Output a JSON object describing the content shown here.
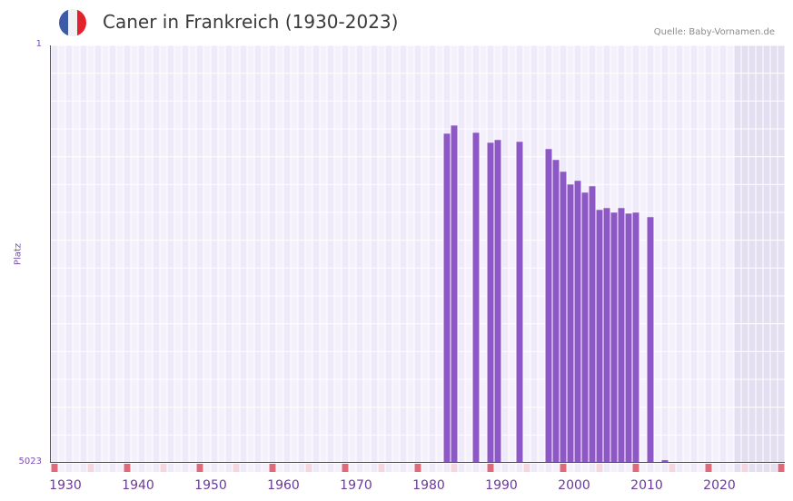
{
  "header": {
    "title": "Caner in Frankreich (1930-2023)",
    "source": "Quelle: Baby-Vornamen.de",
    "flag_colors": [
      "#3c5aa6",
      "#f2f2f5",
      "#e2232b"
    ]
  },
  "axes": {
    "y_label": "Platz",
    "y_top_tick": "1",
    "y_bottom_tick": "5023",
    "x_ticks": [
      "1930",
      "1940",
      "1950",
      "1960",
      "1970",
      "1980",
      "1990",
      "2000",
      "2010",
      "2020"
    ]
  },
  "colors": {
    "bar": "#8e57c6",
    "axis": "#6a3a9a",
    "grid_a": "#efeafa",
    "grid_b": "#f4f1fc",
    "future_shade": "#e3def0",
    "decade_marker": "#e06a7a",
    "half_decade_marker": "#f5d6e0"
  },
  "chart_data": {
    "type": "bar",
    "title": "Caner in Frankreich (1930-2023)",
    "xlabel": "",
    "ylabel": "Platz",
    "y_inverted": true,
    "ylim": [
      5023,
      1
    ],
    "x_range": [
      1928,
      2028
    ],
    "shaded_future_from": 2022,
    "grid": true,
    "legend": null,
    "source": "Quelle: Baby-Vornamen.de",
    "x": [
      1982,
      1983,
      1986,
      1988,
      1989,
      1992,
      1996,
      1997,
      1998,
      1999,
      2000,
      2001,
      2002,
      2003,
      2004,
      2005,
      2006,
      2007,
      2008,
      2010,
      2012
    ],
    "values": [
      1063,
      965,
      1052,
      1172,
      1139,
      1161,
      1248,
      1379,
      1521,
      1674,
      1630,
      1772,
      1696,
      1980,
      1958,
      2012,
      1958,
      2024,
      2012,
      2067,
      4990
    ]
  }
}
